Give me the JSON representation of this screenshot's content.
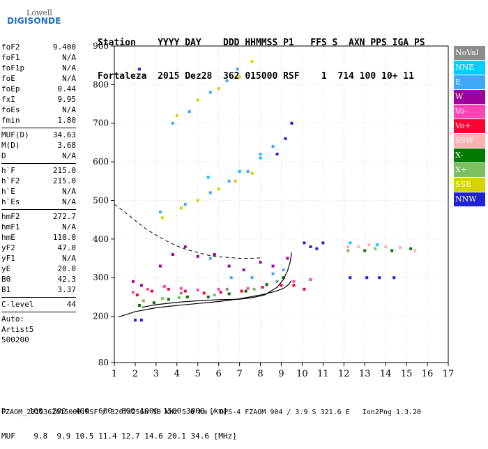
{
  "logo": {
    "line1": "Lowell",
    "line2": "DIGISONDE"
  },
  "header": {
    "labels": "Station    YYYY DAY    DDD HHMMSS P1   FFS S  AXN PPS IGA PS",
    "values": "Fortaleza  2015 Dez28  362 015000 RSF    1  714 100 10+ 11"
  },
  "params": {
    "group1": [
      {
        "name": "foF2",
        "value": "9.400"
      },
      {
        "name": "foF1",
        "value": "N/A"
      },
      {
        "name": "foF1p",
        "value": "N/A"
      },
      {
        "name": "foE",
        "value": "N/A"
      },
      {
        "name": "foEp",
        "value": "0.44"
      },
      {
        "name": "fxI",
        "value": "9.95"
      },
      {
        "name": "foEs",
        "value": "N/A"
      },
      {
        "name": "fmin",
        "value": "1.80"
      }
    ],
    "group2": [
      {
        "name": "MUF(D)",
        "value": "34.63"
      },
      {
        "name": "M(D)",
        "value": "3.68"
      },
      {
        "name": "D",
        "value": "N/A"
      }
    ],
    "group3": [
      {
        "name": "h`F",
        "value": "215.0"
      },
      {
        "name": "h`F2",
        "value": "215.0"
      },
      {
        "name": "h`E",
        "value": "N/A"
      },
      {
        "name": "h`Es",
        "value": "N/A"
      }
    ],
    "group4": [
      {
        "name": "hmF2",
        "value": "272.7"
      },
      {
        "name": "hmF1",
        "value": "N/A"
      },
      {
        "name": "hmE",
        "value": "110.0"
      },
      {
        "name": "yF2",
        "value": "47.0"
      },
      {
        "name": "yF1",
        "value": "N/A"
      },
      {
        "name": "yE",
        "value": "20.0"
      },
      {
        "name": "B0",
        "value": "42.3"
      },
      {
        "name": "B1",
        "value": "3.37"
      }
    ],
    "clevel": {
      "name": "C-level",
      "value": "44"
    },
    "auto": {
      "line1": "Auto:",
      "line2": "Artist5",
      "line3": "500200"
    }
  },
  "legend": [
    {
      "label": "NoVal",
      "color": "#8c8c8c"
    },
    {
      "label": "NNE",
      "color": "#00ccff"
    },
    {
      "label": "E",
      "color": "#3fa9f5"
    },
    {
      "label": "W",
      "color": "#a000a0"
    },
    {
      "label": "Vo-",
      "color": "#ff44b4"
    },
    {
      "label": "Vo+",
      "color": "#ff0033"
    },
    {
      "label": "SSW",
      "color": "#ffb0b0"
    },
    {
      "label": "X-",
      "color": "#007a00"
    },
    {
      "label": "X+",
      "color": "#7ac060"
    },
    {
      "label": "SSE",
      "color": "#d4d400"
    },
    {
      "label": "NNW",
      "color": "#2020d8"
    }
  ],
  "footer": {
    "d_line": "D     100  200  400  600  800 1000 1500 3000 [km]",
    "muf_line": "MUF    9.8  9.9 10.5 11.4 12.7 14.6 20.1 34.6 [MHz]",
    "file_line": "FZAOM_2015362015000.RSF / 320fx256h 50 kHz 5.0 km / DPS-4 FZAOM 904 / 3.9 S 321.6 E   Ion2Png 1.3.20"
  },
  "chart_data": {
    "type": "scatter",
    "xlim": [
      1,
      17
    ],
    "ylim": [
      80,
      900
    ],
    "x_ticks": [
      1,
      2,
      3,
      4,
      5,
      6,
      7,
      8,
      9,
      10,
      11,
      12,
      13,
      14,
      15,
      16,
      17
    ],
    "y_ticks": [
      80,
      200,
      300,
      400,
      500,
      600,
      700,
      800,
      900
    ],
    "grid": true,
    "series": [
      {
        "name": "W",
        "color": "#a000a0",
        "points": [
          [
            1.9,
            290
          ],
          [
            2.3,
            280
          ],
          [
            3.2,
            330
          ],
          [
            3.8,
            360
          ],
          [
            4.4,
            380
          ],
          [
            5.0,
            355
          ],
          [
            5.8,
            360
          ],
          [
            6.5,
            330
          ],
          [
            7.2,
            320
          ],
          [
            8.0,
            340
          ],
          [
            8.6,
            330
          ],
          [
            9.3,
            350
          ]
        ]
      },
      {
        "name": "E",
        "color": "#3fa9f5",
        "points": [
          [
            3.2,
            470
          ],
          [
            4.4,
            490
          ],
          [
            5.6,
            520
          ],
          [
            6.5,
            550
          ],
          [
            7.4,
            575
          ],
          [
            8.0,
            610
          ],
          [
            8.6,
            640
          ],
          [
            5.6,
            350
          ],
          [
            6.6,
            300
          ],
          [
            7.6,
            300
          ],
          [
            8.6,
            310
          ],
          [
            9.1,
            320
          ],
          [
            3.8,
            700
          ],
          [
            4.6,
            730
          ],
          [
            5.6,
            780
          ],
          [
            6.4,
            810
          ],
          [
            6.9,
            840
          ]
        ]
      },
      {
        "name": "NNW",
        "color": "#2020d8",
        "points": [
          [
            10.1,
            390
          ],
          [
            10.4,
            380
          ],
          [
            10.7,
            375
          ],
          [
            11.0,
            390
          ],
          [
            8.8,
            620
          ],
          [
            9.2,
            660
          ],
          [
            9.5,
            700
          ],
          [
            12.3,
            300
          ],
          [
            13.1,
            300
          ],
          [
            13.7,
            300
          ],
          [
            14.4,
            300
          ],
          [
            2.0,
            190
          ],
          [
            2.3,
            190
          ],
          [
            2.2,
            840
          ]
        ]
      },
      {
        "name": "Vo+",
        "color": "#ff0033",
        "points": [
          [
            2.1,
            255
          ],
          [
            2.8,
            265
          ],
          [
            3.6,
            270
          ],
          [
            4.4,
            265
          ],
          [
            5.3,
            260
          ],
          [
            6.1,
            262
          ],
          [
            7.1,
            265
          ],
          [
            8.1,
            275
          ],
          [
            9.0,
            280
          ],
          [
            9.6,
            280
          ],
          [
            10.1,
            270
          ]
        ]
      },
      {
        "name": "Vo-",
        "color": "#ff44b4",
        "points": [
          [
            1.9,
            262
          ],
          [
            2.6,
            270
          ],
          [
            3.4,
            277
          ],
          [
            4.2,
            272
          ],
          [
            5.0,
            268
          ],
          [
            6.0,
            270
          ],
          [
            7.4,
            272
          ],
          [
            9.6,
            290
          ],
          [
            10.4,
            295
          ]
        ]
      },
      {
        "name": "X-",
        "color": "#007a00",
        "points": [
          [
            2.2,
            228
          ],
          [
            2.9,
            235
          ],
          [
            3.6,
            244
          ],
          [
            4.5,
            250
          ],
          [
            5.5,
            250
          ],
          [
            6.5,
            258
          ],
          [
            7.3,
            265
          ],
          [
            8.3,
            282
          ],
          [
            9.1,
            300
          ],
          [
            13.0,
            370
          ],
          [
            14.3,
            370
          ],
          [
            15.2,
            375
          ]
        ]
      },
      {
        "name": "X+",
        "color": "#7ac060",
        "points": [
          [
            2.4,
            240
          ],
          [
            3.3,
            246
          ],
          [
            4.1,
            248
          ],
          [
            5.8,
            255
          ],
          [
            7.7,
            270
          ],
          [
            12.2,
            370
          ],
          [
            13.5,
            375
          ]
        ]
      },
      {
        "name": "SSE",
        "color": "#d4d400",
        "points": [
          [
            3.3,
            455
          ],
          [
            4.2,
            480
          ],
          [
            5.0,
            500
          ],
          [
            6.0,
            530
          ],
          [
            6.8,
            550
          ],
          [
            7.6,
            570
          ],
          [
            4.0,
            720
          ],
          [
            5.0,
            760
          ],
          [
            6.0,
            790
          ],
          [
            7.0,
            820
          ],
          [
            7.6,
            860
          ]
        ]
      },
      {
        "name": "SSW",
        "color": "#ffb0b0",
        "points": [
          [
            12.2,
            380
          ],
          [
            12.7,
            380
          ],
          [
            13.2,
            385
          ],
          [
            14.0,
            380
          ],
          [
            14.7,
            378
          ],
          [
            15.4,
            370
          ]
        ]
      },
      {
        "name": "NNE",
        "color": "#00ccff",
        "points": [
          [
            5.5,
            560
          ],
          [
            7.0,
            575
          ],
          [
            8.0,
            620
          ],
          [
            12.3,
            390
          ],
          [
            13.6,
            385
          ]
        ]
      },
      {
        "name": "NoVal",
        "color": "#8c8c8c",
        "points": [
          [
            4.2,
            260
          ],
          [
            6.4,
            270
          ],
          [
            8.8,
            290
          ]
        ]
      }
    ],
    "curves": [
      {
        "name": "lower-trace",
        "style": "solid",
        "points": [
          [
            1.2,
            198
          ],
          [
            2,
            212
          ],
          [
            3,
            222
          ],
          [
            4,
            228
          ],
          [
            5,
            233
          ],
          [
            6,
            238
          ],
          [
            7,
            245
          ],
          [
            8,
            255
          ],
          [
            8.7,
            264
          ],
          [
            9.1,
            272
          ],
          [
            9.35,
            282
          ],
          [
            9.48,
            292
          ]
        ]
      },
      {
        "name": "upper-trace",
        "style": "solid",
        "points": [
          [
            2.3,
            223
          ],
          [
            3,
            230
          ],
          [
            4,
            236
          ],
          [
            5,
            240
          ],
          [
            6,
            243
          ],
          [
            7,
            244
          ],
          [
            7.6,
            248
          ],
          [
            8.2,
            255
          ],
          [
            8.8,
            275
          ],
          [
            9.1,
            295
          ],
          [
            9.3,
            318
          ],
          [
            9.42,
            340
          ],
          [
            9.5,
            365
          ]
        ]
      },
      {
        "name": "dashed-curve",
        "style": "dashed",
        "points": [
          [
            1,
            490
          ],
          [
            1.5,
            470
          ],
          [
            2,
            448
          ],
          [
            2.5,
            427
          ],
          [
            3,
            410
          ],
          [
            3.5,
            395
          ],
          [
            4,
            382
          ],
          [
            4.5,
            372
          ],
          [
            5,
            365
          ],
          [
            5.5,
            358
          ],
          [
            6,
            354
          ],
          [
            6.5,
            352
          ],
          [
            7,
            350
          ],
          [
            7.5,
            350
          ],
          [
            8,
            351
          ]
        ]
      }
    ]
  }
}
